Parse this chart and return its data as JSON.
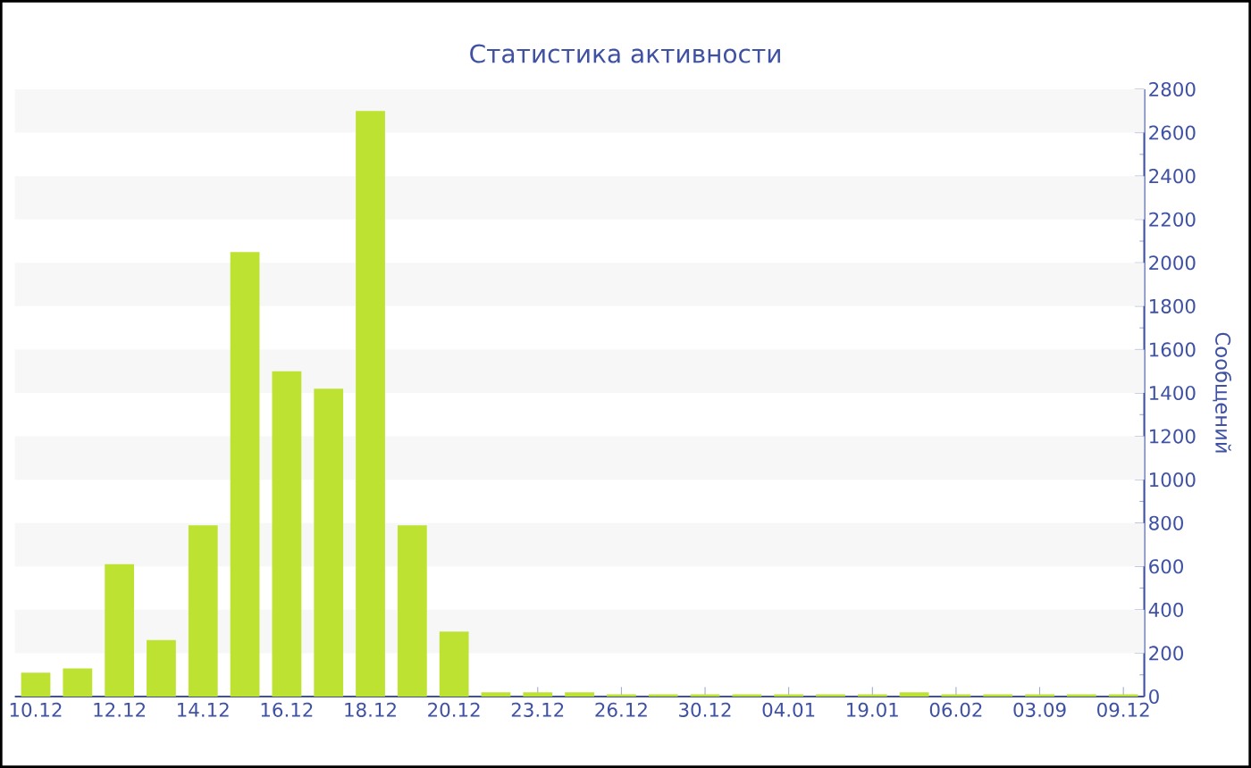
{
  "chart_data": {
    "type": "bar",
    "title": "Статистика активности",
    "ylabel": "Сообщений",
    "categories": [
      "10.12",
      null,
      "12.12",
      null,
      "14.12",
      null,
      "16.12",
      null,
      "18.12",
      null,
      "20.12",
      null,
      "23.12",
      null,
      "26.12",
      null,
      "30.12",
      null,
      "04.01",
      null,
      "19.01",
      null,
      "06.02",
      null,
      "03.09",
      null,
      "09.12"
    ],
    "values": [
      110,
      130,
      610,
      260,
      790,
      2050,
      1500,
      1420,
      2700,
      790,
      300,
      20,
      20,
      20,
      10,
      10,
      10,
      10,
      10,
      10,
      10,
      20,
      10,
      10,
      10,
      10,
      10
    ],
    "color": "#bde232",
    "ylim": [
      0,
      2800
    ],
    "yticks": [
      0,
      200,
      400,
      600,
      800,
      1000,
      1200,
      1400,
      1600,
      1800,
      2000,
      2200,
      2400,
      2600,
      2800
    ]
  }
}
